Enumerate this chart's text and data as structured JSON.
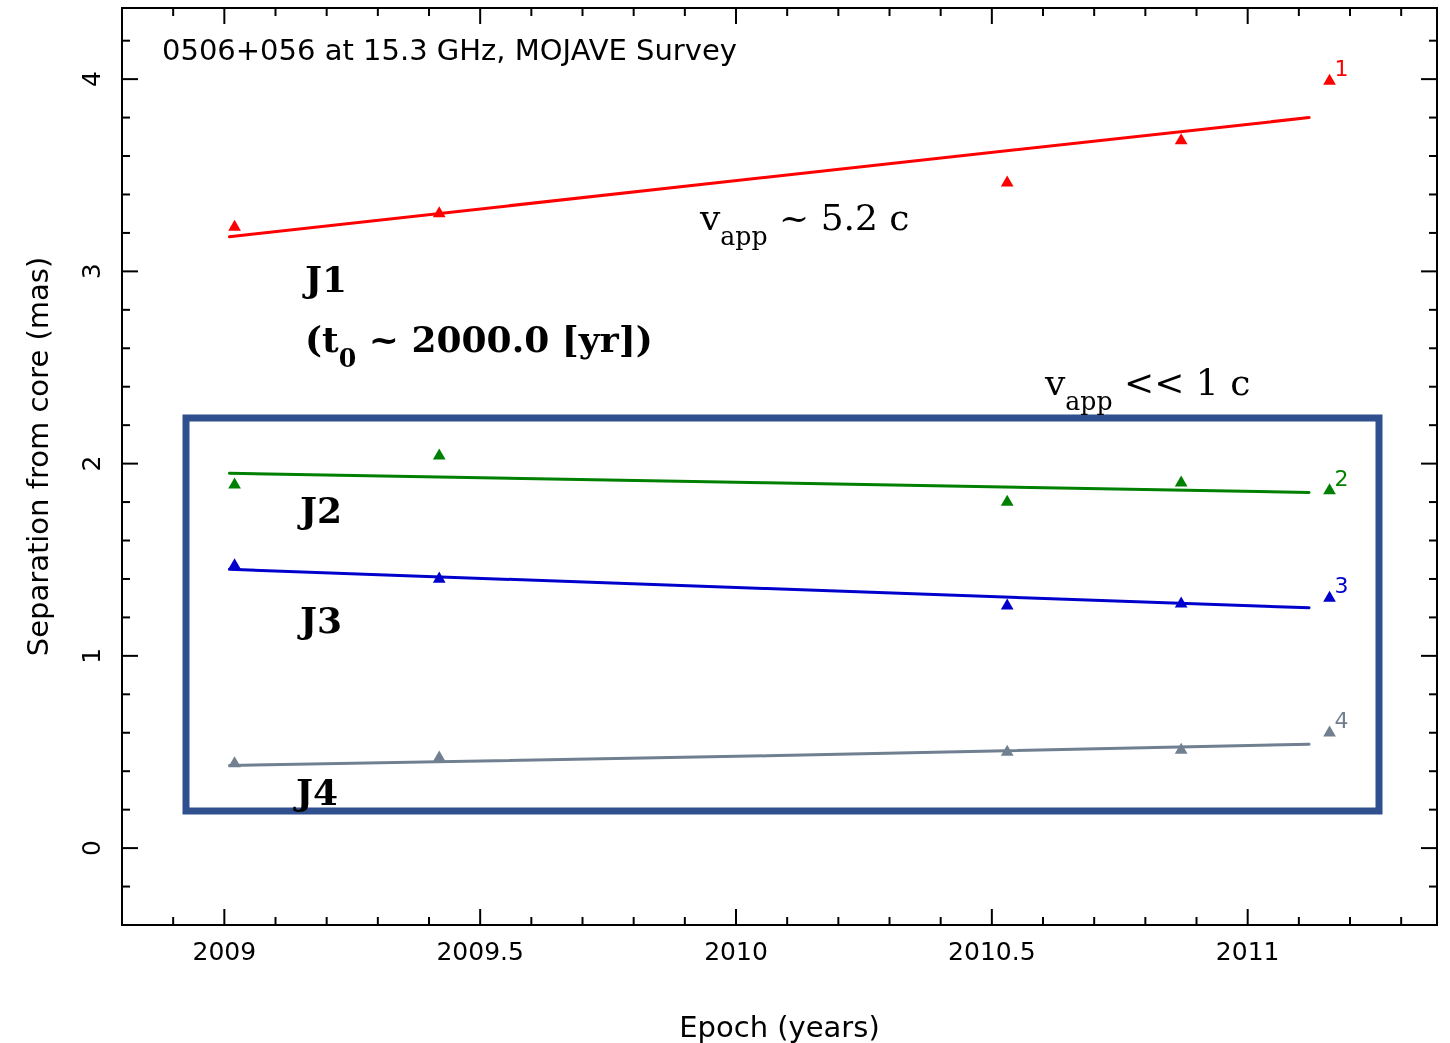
{
  "chart_data": {
    "type": "scatter",
    "title": "0506+056 at 15.3 GHz, MOJAVE Survey",
    "xlabel": "Epoch (years)",
    "ylabel": "Separation from core (mas)",
    "xlim": [
      2008.8,
      2011.37
    ],
    "ylim": [
      -0.4,
      4.37
    ],
    "xticks": [
      {
        "value": 2008.9,
        "label": null
      },
      2009,
      {
        "value": 2009.1,
        "label": null
      },
      {
        "value": 2009.2,
        "label": null
      },
      {
        "value": 2009.3,
        "label": null
      },
      {
        "value": 2009.4,
        "label": null
      },
      2009.5,
      {
        "value": 2009.6,
        "label": null
      },
      {
        "value": 2009.7,
        "label": null
      },
      {
        "value": 2009.8,
        "label": null
      },
      {
        "value": 2009.9,
        "label": null
      },
      2010,
      {
        "value": 2010.1,
        "label": null
      },
      {
        "value": 2010.2,
        "label": null
      },
      {
        "value": 2010.3,
        "label": null
      },
      {
        "value": 2010.4,
        "label": null
      },
      2010.5,
      {
        "value": 2010.6,
        "label": null
      },
      {
        "value": 2010.7,
        "label": null
      },
      {
        "value": 2010.8,
        "label": null
      },
      {
        "value": 2010.9,
        "label": null
      },
      2011,
      {
        "value": 2011.1,
        "label": null
      },
      {
        "value": 2011.2,
        "label": null
      },
      {
        "value": 2011.3,
        "label": null
      }
    ],
    "yticks": [
      {
        "value": -0.2,
        "label": null
      },
      0,
      {
        "value": 0.2,
        "label": null
      },
      {
        "value": 0.4,
        "label": null
      },
      {
        "value": 0.6,
        "label": null
      },
      {
        "value": 0.8,
        "label": null
      },
      1,
      {
        "value": 1.2,
        "label": null
      },
      {
        "value": 1.4,
        "label": null
      },
      {
        "value": 1.6,
        "label": null
      },
      {
        "value": 1.8,
        "label": null
      },
      2,
      {
        "value": 2.2,
        "label": null
      },
      {
        "value": 2.4,
        "label": null
      },
      {
        "value": 2.6,
        "label": null
      },
      {
        "value": 2.8,
        "label": null
      },
      3,
      {
        "value": 3.2,
        "label": null
      },
      {
        "value": 3.4,
        "label": null
      },
      {
        "value": 3.6,
        "label": null
      },
      {
        "value": 3.8,
        "label": null
      },
      4,
      {
        "value": 4.2,
        "label": null
      }
    ],
    "grid": false,
    "x": [
      2009.02,
      2009.42,
      2010.53,
      2010.87,
      2011.16
    ],
    "series": [
      {
        "name": "1",
        "marker": "triangle",
        "color": "#ff0000",
        "values": [
          3.23,
          3.3,
          3.46,
          3.68,
          3.99
        ]
      },
      {
        "name": "2",
        "marker": "triangle",
        "color": "#008000",
        "values": [
          1.89,
          2.04,
          1.8,
          1.9,
          1.86
        ]
      },
      {
        "name": "3",
        "marker": "triangle",
        "color": "#0000cc",
        "values": [
          1.47,
          1.4,
          1.26,
          1.27,
          1.3
        ]
      },
      {
        "name": "4",
        "marker": "triangle",
        "color": "#708090",
        "values": [
          0.44,
          0.47,
          0.5,
          0.51,
          0.6
        ]
      },
      {
        "type": "line",
        "color": "#ff0000",
        "x": [
          2009.01,
          2010.06,
          2011.12
        ],
        "values": [
          3.18,
          3.49,
          3.8
        ]
      },
      {
        "type": "line",
        "color": "#008000",
        "x": [
          2009.01,
          2010.06,
          2011.12
        ],
        "values": [
          1.95,
          1.9,
          1.85
        ]
      },
      {
        "type": "line",
        "color": "#0000cc",
        "x": [
          2009.01,
          2010.06,
          2011.12
        ],
        "values": [
          1.45,
          1.35,
          1.25
        ]
      },
      {
        "type": "line",
        "color": "#708090",
        "x": [
          2009.01,
          2010.06,
          2011.12
        ],
        "values": [
          0.43,
          0.48,
          0.54
        ]
      }
    ],
    "annotations": [
      "v$_{app}$ ~ 5.2 c",
      "J1",
      "(t$_{0}$ ~ 2000.0 [yr])",
      "v$_{app}$ << 1 c",
      "J2",
      "J3",
      "J4"
    ]
  }
}
